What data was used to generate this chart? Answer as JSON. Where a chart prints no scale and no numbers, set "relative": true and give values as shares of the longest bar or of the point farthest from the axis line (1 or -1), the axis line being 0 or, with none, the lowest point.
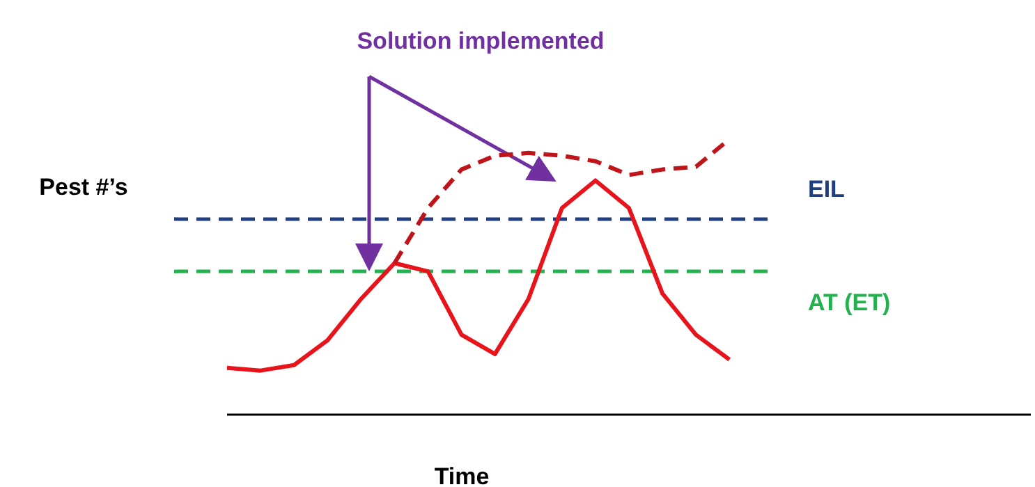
{
  "chart_data": {
    "type": "line",
    "relative": true,
    "xlabel": "Time",
    "ylabel": "Pest #’s",
    "annotations": [
      "Solution implemented"
    ],
    "categories": [
      null,
      null,
      null,
      null,
      null,
      null,
      null,
      null,
      null,
      null,
      null,
      null,
      null,
      null,
      null,
      null
    ],
    "series": [
      {
        "color": "#e8141b",
        "line_style": "solid",
        "values": [
          0.17,
          0.16,
          0.18,
          0.27,
          0.42,
          0.55,
          0.52,
          0.29,
          0.22,
          0.42,
          0.75,
          0.85,
          0.75,
          0.44,
          0.29,
          0.2
        ]
      },
      {
        "color": "#c0141b",
        "line_style": "dashed",
        "values": [
          null,
          null,
          null,
          null,
          null,
          0.55,
          0.75,
          0.89,
          0.94,
          0.95,
          0.94,
          0.92,
          0.87,
          0.89,
          0.9,
          1.0
        ]
      }
    ],
    "ref_lines": [
      {
        "axis": "y",
        "value": 0.71,
        "label": "EIL",
        "color": "#1f3f7f",
        "line_style": "dashed"
      },
      {
        "axis": "y",
        "value": 0.52,
        "label": "AT (ET)",
        "color": "#22b14c",
        "line_style": "dashed"
      }
    ],
    "marker": "none",
    "grid": false,
    "legend": false
  }
}
